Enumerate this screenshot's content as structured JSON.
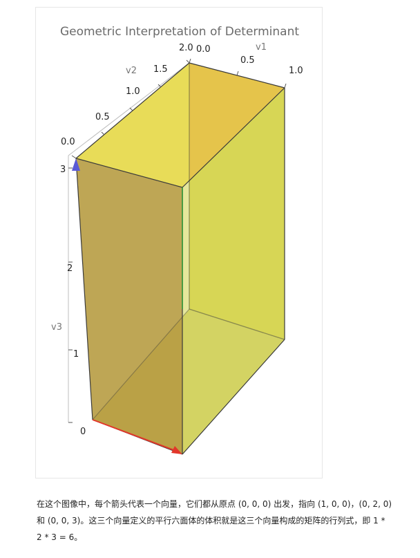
{
  "figure": {
    "title": "Geometric Interpretation of Determinant",
    "colors": {
      "face_side": "#c9ab4e",
      "face_top": "#e2d64a",
      "face_back": "#cfcf48",
      "edge": "#3a3a3a",
      "arrow_v1": "#e2372a",
      "arrow_v2": "#3ea53e",
      "arrow_v3": "#5a5ad6"
    },
    "axes": {
      "v1": {
        "label": "v1",
        "ticks": [
          "0.0",
          "0.5",
          "1.0"
        ]
      },
      "v2": {
        "label": "v2",
        "ticks": [
          "0.0",
          "0.5",
          "1.0",
          "1.5",
          "2.0"
        ]
      },
      "v3": {
        "label": "v3",
        "ticks": [
          "0",
          "1",
          "2",
          "3"
        ]
      }
    }
  },
  "caption": {
    "line1": "在这个图像中，每个箭头代表一个向量，它们都从原点 (0, 0, 0) 出发，指向 (1, 0, 0)，(0, 2, 0)",
    "line2": "和 (0, 0, 3)。这三个向量定义的平行六面体的体积就是这三个向量构成的矩阵的行列式，即 1 *",
    "line3": "2 * 3 = 6。"
  }
}
